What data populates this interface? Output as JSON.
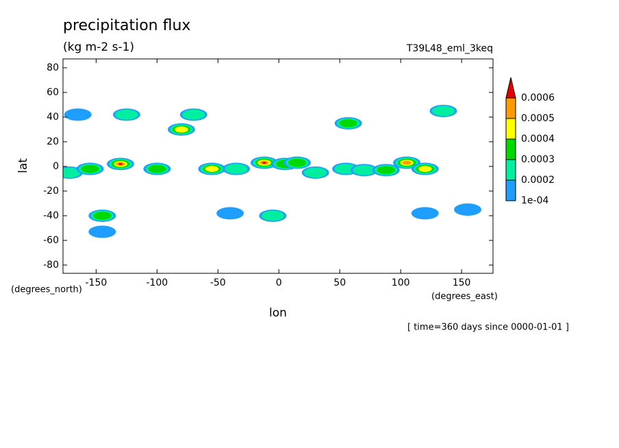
{
  "chart_data": {
    "type": "contour",
    "title": "precipitation flux",
    "subtitle": "(kg m-2 s-1)",
    "annotation": "T39L48_eml_3keq",
    "xlabel": "lon",
    "ylabel": "lat",
    "xunits": "(degrees_east)",
    "yunits": "(degrees_north)",
    "footer": "[ time=360 days since 0000-01-01 ]",
    "xlim": [
      -177.2,
      175.8
    ],
    "ylim": [
      -86.7,
      87.2
    ],
    "xticks": [
      -150,
      -100,
      -50,
      0,
      50,
      100,
      150
    ],
    "yticks": [
      -80,
      -60,
      -40,
      -20,
      0,
      20,
      40,
      60,
      80
    ],
    "levels": [
      {
        "value": 0.0001,
        "label": "1e-04"
      },
      0.0002,
      0.0003,
      0.0004,
      0.0005,
      0.0006
    ],
    "colors": [
      "#1e9eff",
      "#00eea0",
      "#00d800",
      "#ffff00",
      "#ff9a00",
      "#e60000"
    ],
    "x": [
      -172,
      -155,
      -130,
      -100,
      -55,
      -35,
      -12,
      5,
      15,
      30,
      55,
      70,
      88,
      105,
      120,
      -165,
      -125,
      -80,
      -70,
      57,
      135,
      -145,
      -145,
      -40,
      -5,
      120,
      155
    ],
    "y": [
      -5,
      -2,
      2,
      -2,
      -2,
      -2,
      3,
      2,
      3,
      -5,
      -2,
      -3,
      -3,
      3,
      -2,
      42,
      42,
      30,
      42,
      35,
      45,
      -40,
      -53,
      -38,
      -40,
      -38,
      -35
    ],
    "values": [
      0.0002,
      0.0003,
      0.0006,
      0.0003,
      0.0004,
      0.0002,
      0.0006,
      0.0003,
      0.0003,
      0.0002,
      0.0002,
      0.0002,
      0.0003,
      0.0005,
      0.0004,
      0.0001,
      0.0002,
      0.0004,
      0.0002,
      0.0003,
      0.0002,
      0.0003,
      0.0001,
      0.0001,
      0.0002,
      0.0001,
      0.0001
    ]
  }
}
